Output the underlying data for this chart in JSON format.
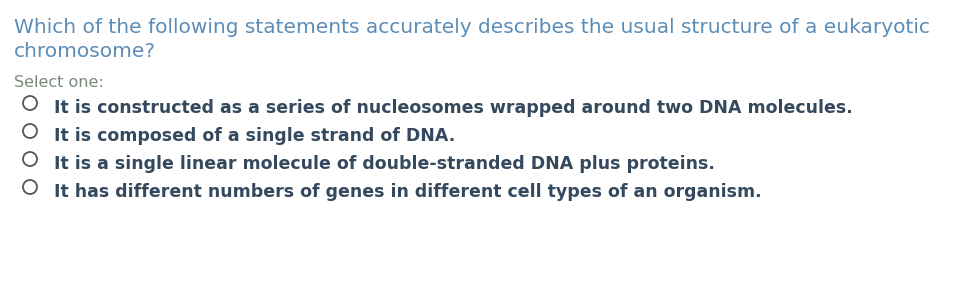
{
  "background_color": "#ffffff",
  "question_color": "#5b8db8",
  "question_text_line1": "Which of the following statements accurately describes the usual structure of a eukaryotic",
  "question_text_line2": "chromosome?",
  "select_one_color": "#7a8a7a",
  "select_one_text": "Select one:",
  "options_color": "#34495e",
  "options": [
    "It is constructed as a series of nucleosomes wrapped around two DNA molecules.",
    "It is composed of a single strand of DNA.",
    "It is a single linear molecule of double-stranded DNA plus proteins.",
    "It has different numbers of genes in different cell types of an organism."
  ],
  "question_fontsize": 14.5,
  "select_one_fontsize": 11.5,
  "option_fontsize": 12.5,
  "circle_color": "#555555",
  "fig_width": 9.76,
  "fig_height": 2.9,
  "dpi": 100
}
